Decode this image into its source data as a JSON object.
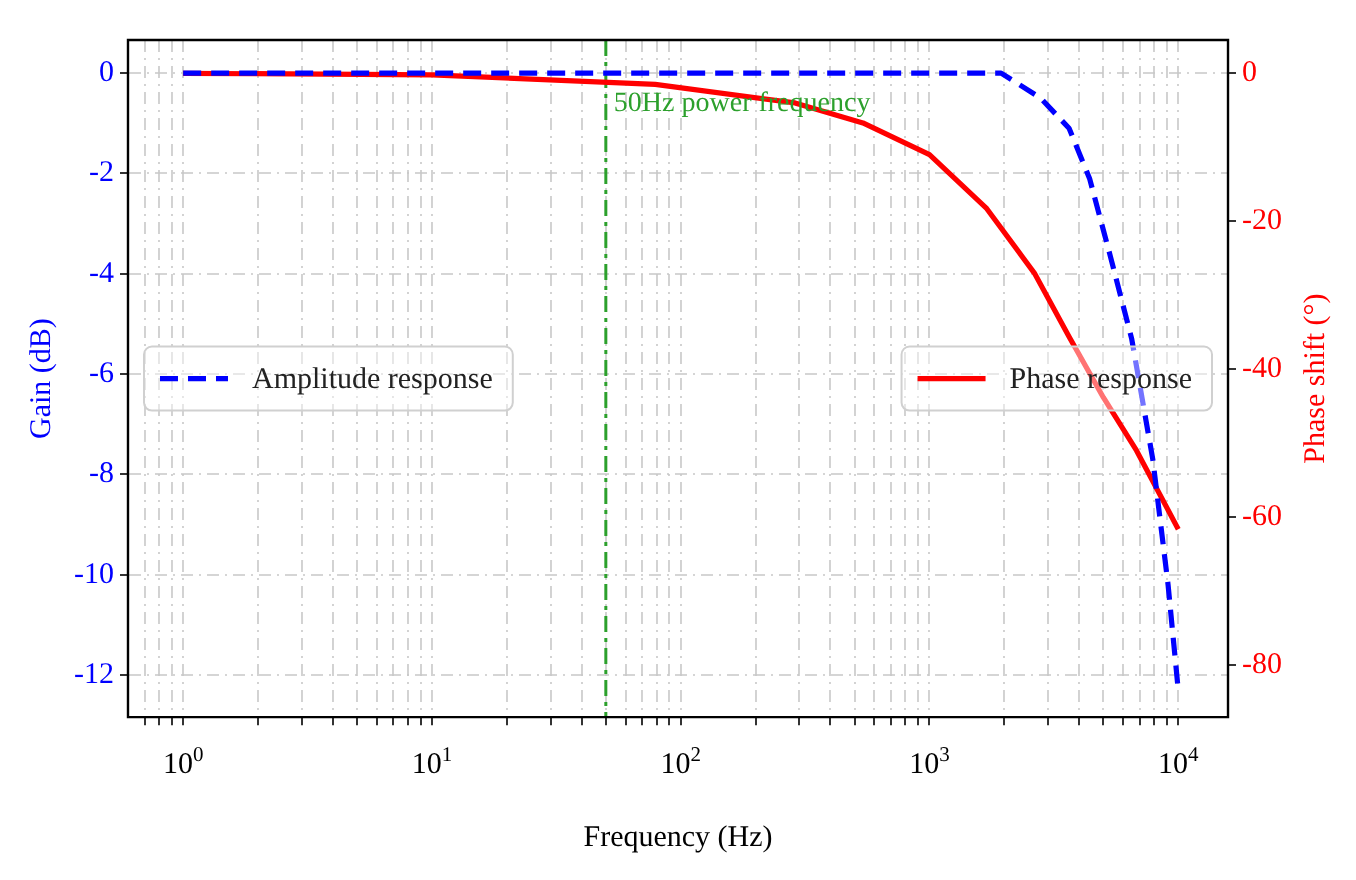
{
  "chart_data": {
    "type": "line",
    "xlabel": "Frequency (Hz)",
    "ylabel": "Gain (dB)",
    "y2label": "Phase shift (°)",
    "log": "x",
    "grid": true,
    "legend": "center",
    "marker": "none",
    "xlim": [
      0.63,
      15849
    ],
    "ylim": [
      -12.84,
      0.66
    ],
    "y2lim": [
      -87,
      4.5
    ],
    "xticks": [
      {
        "value": 0.7,
        "label": null
      },
      {
        "value": 0.8,
        "label": null
      },
      {
        "value": 0.9,
        "label": null
      },
      {
        "value": 1,
        "label": "10$^{0}$"
      },
      {
        "value": 2,
        "label": null
      },
      {
        "value": 3,
        "label": null
      },
      {
        "value": 4,
        "label": null
      },
      {
        "value": 5,
        "label": null
      },
      {
        "value": 6,
        "label": null
      },
      {
        "value": 7,
        "label": null
      },
      {
        "value": 8,
        "label": null
      },
      {
        "value": 9,
        "label": null
      },
      {
        "value": 10,
        "label": "10$^{1}$"
      },
      {
        "value": 20,
        "label": null
      },
      {
        "value": 30,
        "label": null
      },
      {
        "value": 40,
        "label": null
      },
      {
        "value": 50,
        "label": null
      },
      {
        "value": 60,
        "label": null
      },
      {
        "value": 70,
        "label": null
      },
      {
        "value": 80,
        "label": null
      },
      {
        "value": 90,
        "label": null
      },
      {
        "value": 100,
        "label": "10$^{2}$"
      },
      {
        "value": 200,
        "label": null
      },
      {
        "value": 300,
        "label": null
      },
      {
        "value": 400,
        "label": null
      },
      {
        "value": 500,
        "label": null
      },
      {
        "value": 600,
        "label": null
      },
      {
        "value": 700,
        "label": null
      },
      {
        "value": 800,
        "label": null
      },
      {
        "value": 900,
        "label": null
      },
      {
        "value": 1000,
        "label": "10$^{3}$"
      },
      {
        "value": 2000,
        "label": null
      },
      {
        "value": 3000,
        "label": null
      },
      {
        "value": 4000,
        "label": null
      },
      {
        "value": 5000,
        "label": null
      },
      {
        "value": 6000,
        "label": null
      },
      {
        "value": 7000,
        "label": null
      },
      {
        "value": 8000,
        "label": null
      },
      {
        "value": 9000,
        "label": null
      },
      {
        "value": 10000,
        "label": "10$^{4}$"
      }
    ],
    "yticks": [
      -12,
      -10,
      -8,
      -6,
      -4,
      -2,
      0
    ],
    "y2ticks": [
      -80,
      -60,
      -40,
      -20,
      0
    ],
    "series": [
      {
        "name": "Amplitude response",
        "color": "#0000ff",
        "line_style": "dashed",
        "axis": "y",
        "x": [
          1,
          10,
          100,
          1000,
          1940,
          2800,
          3640,
          4400,
          5300,
          6500,
          7900,
          9100,
          10000
        ],
        "values": [
          0,
          0,
          0,
          0,
          0,
          -0.5,
          -1.1,
          -2.1,
          -3.6,
          -5.3,
          -7.7,
          -10.2,
          -12.3
        ]
      },
      {
        "name": "Phase response",
        "color": "#ff0000",
        "line_style": "solid",
        "axis": "y2",
        "x": [
          1,
          10,
          79,
          288,
          540,
          1000,
          1700,
          2640,
          3640,
          5000,
          6800,
          10000
        ],
        "values": [
          0,
          -0.2,
          -1.5,
          -4,
          -6.7,
          -11,
          -18.3,
          -27,
          -35.6,
          -43.8,
          -51,
          -61.6
        ]
      }
    ],
    "ref_lines": [
      {
        "axis": "x",
        "value": 50,
        "label": "50Hz power frequency",
        "color": "#2ca02c",
        "line_style": "dashdot"
      }
    ]
  }
}
